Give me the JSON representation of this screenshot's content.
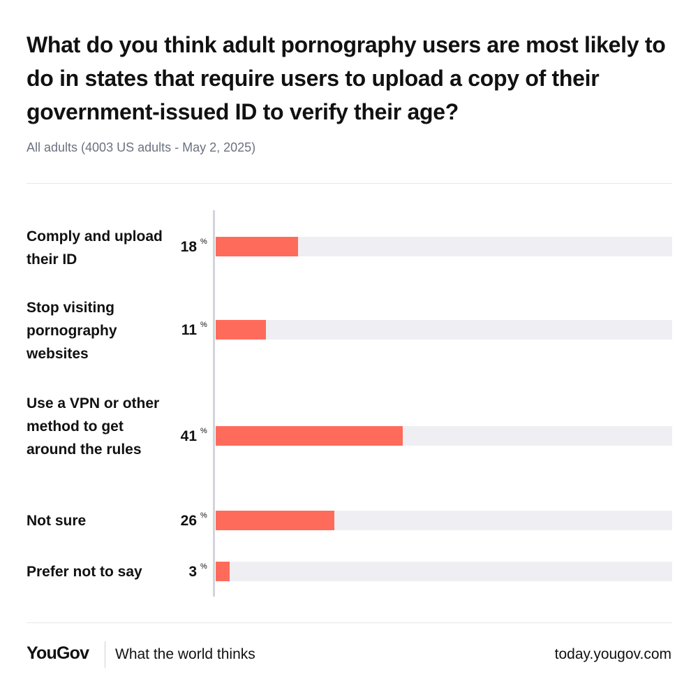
{
  "chart_data": {
    "type": "bar",
    "title": "What do you think adult pornography users are most likely to do in states that require users to upload a copy of their government-issued ID to verify their age?",
    "subtitle": "All adults (4003 US adults - May 2, 2025)",
    "categories": [
      "Comply and upload their ID",
      "Stop visiting pornography websites",
      "Use a VPN or other method to get around the rules",
      "Not sure",
      "Prefer not to say"
    ],
    "values": [
      18,
      11,
      41,
      26,
      3
    ],
    "unit": "%",
    "ylim": [
      0,
      100
    ],
    "bar_color": "#ff6b5b",
    "track_color": "#efeff3"
  },
  "footer": {
    "brand": "YouGov",
    "tagline": "What the world thinks",
    "site": "today.yougov.com"
  }
}
